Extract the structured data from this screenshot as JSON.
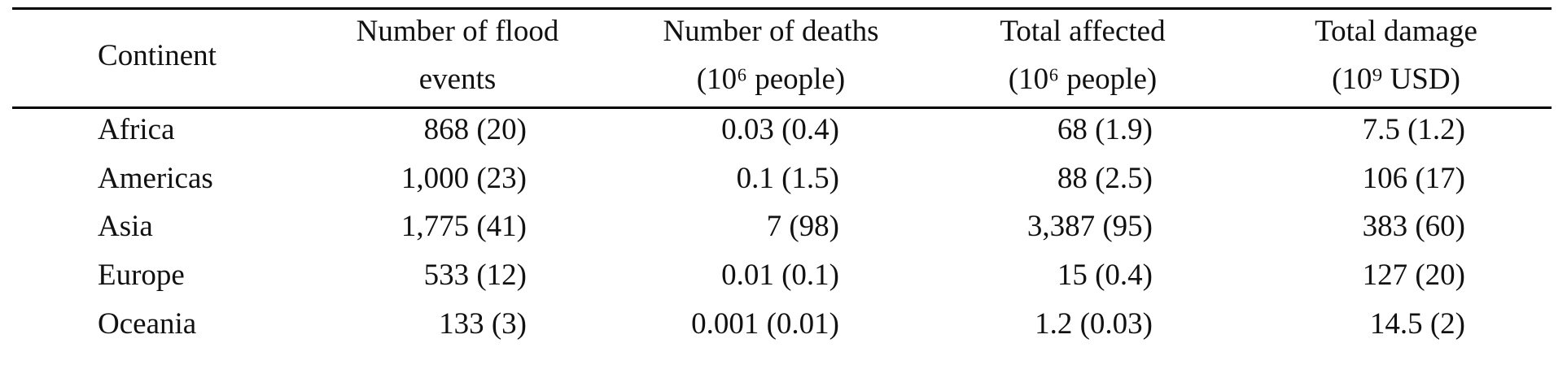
{
  "table": {
    "header": [
      [
        "Continent"
      ],
      [
        "Number of flood",
        "events"
      ],
      [
        "Number of deaths",
        "(10⁶ people)"
      ],
      [
        "Total affected",
        "(10⁶ people)"
      ],
      [
        "Total damage",
        "(10⁹ USD)"
      ]
    ],
    "rows": [
      [
        "Africa",
        "868 (20)",
        "0.03 (0.4)",
        "68 (1.9)",
        "7.5 (1.2)"
      ],
      [
        "Americas",
        "1,000 (23)",
        "0.1 (1.5)",
        "88 (2.5)",
        "106 (17)"
      ],
      [
        "Asia",
        "1,775 (41)",
        "7 (98)",
        "3,387 (95)",
        "383 (60)"
      ],
      [
        "Europe",
        "533 (12)",
        "0.01 (0.1)",
        "15 (0.4)",
        "127 (20)"
      ],
      [
        "Oceania",
        "133 (3)",
        "0.001 (0.01)",
        "1.2 (0.03)",
        "14.5 (2)"
      ]
    ]
  }
}
